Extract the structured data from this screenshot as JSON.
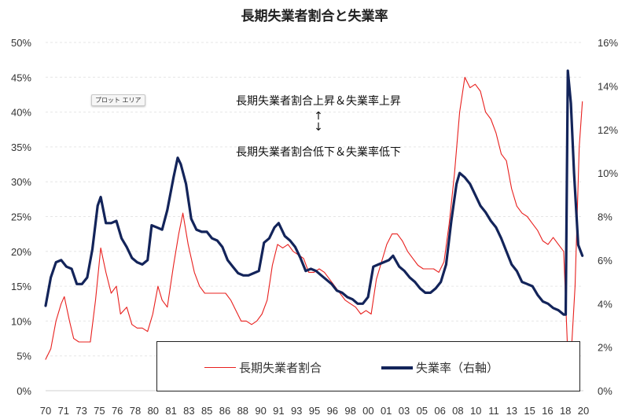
{
  "colors": {
    "long_term": "#e8201e",
    "unemployment": "#13245a",
    "grid": "#e6e6e6",
    "text": "#333333"
  },
  "tooltip": "プロット エリア",
  "annotations": {
    "up": "長期失業者割合上昇＆失業率上昇",
    "arrows": "↑↓",
    "down": "長期失業者割合低下＆失業率低下"
  },
  "legend": {
    "long_term": "長期失業者割合",
    "unemployment": "失業率（右軸）"
  },
  "chart_data": {
    "type": "line",
    "title": "長期失業者割合と失業率",
    "x_tick_labels": [
      "70",
      "71",
      "73",
      "75",
      "76",
      "78",
      "80",
      "81",
      "83",
      "85",
      "86",
      "88",
      "90",
      "91",
      "93",
      "95",
      "96",
      "98",
      "00",
      "01",
      "03",
      "05",
      "06",
      "08",
      "10",
      "11",
      "13",
      "15",
      "16",
      "18",
      "20"
    ],
    "y_left": {
      "range": [
        0,
        50
      ],
      "ticks": [
        "0%",
        "5%",
        "10%",
        "15%",
        "20%",
        "25%",
        "30%",
        "35%",
        "40%",
        "45%",
        "50%"
      ]
    },
    "y_right": {
      "range": [
        0,
        16
      ],
      "ticks": [
        "0%",
        "2%",
        "4%",
        "6%",
        "8%",
        "10%",
        "12%",
        "14%",
        "16%"
      ]
    },
    "grid": "horizontal",
    "legend_position": "bottom",
    "series": [
      {
        "name": "長期失業者割合",
        "axis": "left",
        "points": [
          [
            1970.0,
            4.5
          ],
          [
            1970.5,
            6
          ],
          [
            1971.0,
            10
          ],
          [
            1971.5,
            12.5
          ],
          [
            1971.8,
            13.5
          ],
          [
            1972.3,
            10
          ],
          [
            1972.7,
            7.5
          ],
          [
            1973.2,
            7
          ],
          [
            1973.7,
            7
          ],
          [
            1974.3,
            7
          ],
          [
            1974.8,
            13
          ],
          [
            1975.3,
            20.5
          ],
          [
            1975.8,
            17
          ],
          [
            1976.3,
            14
          ],
          [
            1976.8,
            15
          ],
          [
            1977.2,
            11
          ],
          [
            1977.8,
            12
          ],
          [
            1978.3,
            9.5
          ],
          [
            1978.8,
            9
          ],
          [
            1979.3,
            9
          ],
          [
            1979.8,
            8.5
          ],
          [
            1980.3,
            11
          ],
          [
            1980.8,
            15
          ],
          [
            1981.2,
            13
          ],
          [
            1981.7,
            12
          ],
          [
            1982.3,
            18
          ],
          [
            1982.8,
            22.5
          ],
          [
            1983.2,
            25.5
          ],
          [
            1983.7,
            21
          ],
          [
            1984.3,
            17
          ],
          [
            1984.8,
            15
          ],
          [
            1985.3,
            14
          ],
          [
            1985.8,
            14
          ],
          [
            1986.3,
            14
          ],
          [
            1986.8,
            14
          ],
          [
            1987.3,
            14
          ],
          [
            1987.8,
            13
          ],
          [
            1988.3,
            11.5
          ],
          [
            1988.8,
            10
          ],
          [
            1989.3,
            10
          ],
          [
            1989.8,
            9.5
          ],
          [
            1990.3,
            10
          ],
          [
            1990.8,
            11
          ],
          [
            1991.3,
            13
          ],
          [
            1991.8,
            18
          ],
          [
            1992.3,
            21
          ],
          [
            1992.8,
            20.5
          ],
          [
            1993.3,
            21
          ],
          [
            1993.8,
            20
          ],
          [
            1994.3,
            19.5
          ],
          [
            1994.8,
            19
          ],
          [
            1995.3,
            17
          ],
          [
            1995.8,
            17
          ],
          [
            1996.3,
            17.5
          ],
          [
            1996.8,
            17
          ],
          [
            1997.3,
            16
          ],
          [
            1997.8,
            15
          ],
          [
            1998.3,
            14
          ],
          [
            1998.8,
            13
          ],
          [
            1999.3,
            12.5
          ],
          [
            1999.8,
            12
          ],
          [
            2000.3,
            11
          ],
          [
            2000.8,
            11.5
          ],
          [
            2001.3,
            11
          ],
          [
            2001.8,
            16
          ],
          [
            2002.3,
            18.5
          ],
          [
            2002.8,
            21
          ],
          [
            2003.3,
            22.5
          ],
          [
            2003.8,
            22.5
          ],
          [
            2004.3,
            21.5
          ],
          [
            2004.8,
            20
          ],
          [
            2005.3,
            19
          ],
          [
            2005.8,
            18
          ],
          [
            2006.3,
            17.5
          ],
          [
            2006.8,
            17.5
          ],
          [
            2007.3,
            17.5
          ],
          [
            2007.8,
            17
          ],
          [
            2008.3,
            18.5
          ],
          [
            2008.8,
            24
          ],
          [
            2009.3,
            31
          ],
          [
            2009.8,
            40
          ],
          [
            2010.3,
            45
          ],
          [
            2010.8,
            43.5
          ],
          [
            2011.3,
            44
          ],
          [
            2011.8,
            43
          ],
          [
            2012.3,
            40
          ],
          [
            2012.8,
            39
          ],
          [
            2013.3,
            37
          ],
          [
            2013.8,
            34
          ],
          [
            2014.3,
            33
          ],
          [
            2014.8,
            29
          ],
          [
            2015.3,
            26.5
          ],
          [
            2015.8,
            25.5
          ],
          [
            2016.3,
            25
          ],
          [
            2016.8,
            24
          ],
          [
            2017.3,
            23
          ],
          [
            2017.8,
            21.5
          ],
          [
            2018.3,
            21
          ],
          [
            2018.8,
            22
          ],
          [
            2019.3,
            21
          ],
          [
            2019.8,
            20
          ],
          [
            2020.2,
            5
          ],
          [
            2020.5,
            4.5
          ],
          [
            2020.9,
            15
          ],
          [
            2021.3,
            35
          ],
          [
            2021.6,
            41.5
          ]
        ]
      },
      {
        "name": "失業率（右軸）",
        "axis": "right",
        "points": [
          [
            1970.0,
            3.9
          ],
          [
            1970.5,
            5.2
          ],
          [
            1971.0,
            5.9
          ],
          [
            1971.5,
            6
          ],
          [
            1972.0,
            5.7
          ],
          [
            1972.5,
            5.6
          ],
          [
            1973.0,
            4.9
          ],
          [
            1973.5,
            4.9
          ],
          [
            1974.0,
            5.2
          ],
          [
            1974.5,
            6.5
          ],
          [
            1975.0,
            8.5
          ],
          [
            1975.3,
            8.9
          ],
          [
            1975.8,
            7.7
          ],
          [
            1976.3,
            7.7
          ],
          [
            1976.8,
            7.8
          ],
          [
            1977.3,
            7.0
          ],
          [
            1977.8,
            6.6
          ],
          [
            1978.3,
            6.1
          ],
          [
            1978.8,
            5.9
          ],
          [
            1979.3,
            5.8
          ],
          [
            1979.8,
            6.0
          ],
          [
            1980.2,
            7.6
          ],
          [
            1980.7,
            7.5
          ],
          [
            1981.2,
            7.4
          ],
          [
            1981.7,
            8.3
          ],
          [
            1982.3,
            9.8
          ],
          [
            1982.7,
            10.7
          ],
          [
            1983.0,
            10.4
          ],
          [
            1983.5,
            9.5
          ],
          [
            1984.0,
            7.9
          ],
          [
            1984.5,
            7.4
          ],
          [
            1985.0,
            7.3
          ],
          [
            1985.5,
            7.3
          ],
          [
            1986.0,
            7.0
          ],
          [
            1986.5,
            6.9
          ],
          [
            1987.0,
            6.6
          ],
          [
            1987.5,
            6.0
          ],
          [
            1988.0,
            5.7
          ],
          [
            1988.5,
            5.4
          ],
          [
            1989.0,
            5.3
          ],
          [
            1989.5,
            5.3
          ],
          [
            1990.0,
            5.4
          ],
          [
            1990.5,
            5.5
          ],
          [
            1991.0,
            6.8
          ],
          [
            1991.5,
            7.0
          ],
          [
            1992.0,
            7.5
          ],
          [
            1992.4,
            7.7
          ],
          [
            1993.0,
            7.1
          ],
          [
            1993.5,
            6.9
          ],
          [
            1994.0,
            6.6
          ],
          [
            1994.5,
            6.1
          ],
          [
            1995.0,
            5.5
          ],
          [
            1995.5,
            5.6
          ],
          [
            1996.0,
            5.5
          ],
          [
            1996.5,
            5.3
          ],
          [
            1997.0,
            5.1
          ],
          [
            1997.5,
            4.9
          ],
          [
            1998.0,
            4.6
          ],
          [
            1998.5,
            4.5
          ],
          [
            1999.0,
            4.3
          ],
          [
            1999.5,
            4.2
          ],
          [
            2000.0,
            4.0
          ],
          [
            2000.5,
            4.0
          ],
          [
            2001.0,
            4.3
          ],
          [
            2001.5,
            5.7
          ],
          [
            2002.0,
            5.8
          ],
          [
            2002.5,
            5.9
          ],
          [
            2003.0,
            6.0
          ],
          [
            2003.4,
            6.2
          ],
          [
            2004.0,
            5.7
          ],
          [
            2004.5,
            5.5
          ],
          [
            2005.0,
            5.2
          ],
          [
            2005.5,
            5.0
          ],
          [
            2006.0,
            4.7
          ],
          [
            2006.5,
            4.5
          ],
          [
            2007.0,
            4.5
          ],
          [
            2007.5,
            4.7
          ],
          [
            2008.0,
            5.0
          ],
          [
            2008.5,
            5.8
          ],
          [
            2009.0,
            7.8
          ],
          [
            2009.5,
            9.5
          ],
          [
            2009.8,
            10.0
          ],
          [
            2010.3,
            9.8
          ],
          [
            2010.8,
            9.5
          ],
          [
            2011.3,
            9.0
          ],
          [
            2011.8,
            8.5
          ],
          [
            2012.3,
            8.2
          ],
          [
            2012.8,
            7.8
          ],
          [
            2013.3,
            7.5
          ],
          [
            2013.8,
            7.0
          ],
          [
            2014.3,
            6.4
          ],
          [
            2014.8,
            5.8
          ],
          [
            2015.3,
            5.5
          ],
          [
            2015.8,
            5.0
          ],
          [
            2016.3,
            4.9
          ],
          [
            2016.8,
            4.8
          ],
          [
            2017.3,
            4.4
          ],
          [
            2017.8,
            4.1
          ],
          [
            2018.3,
            4.0
          ],
          [
            2018.8,
            3.8
          ],
          [
            2019.3,
            3.7
          ],
          [
            2019.8,
            3.5
          ],
          [
            2020.0,
            3.5
          ],
          [
            2020.2,
            14.7
          ],
          [
            2020.5,
            13.2
          ],
          [
            2020.8,
            10.0
          ],
          [
            2021.2,
            6.7
          ],
          [
            2021.6,
            6.2
          ]
        ]
      }
    ]
  }
}
